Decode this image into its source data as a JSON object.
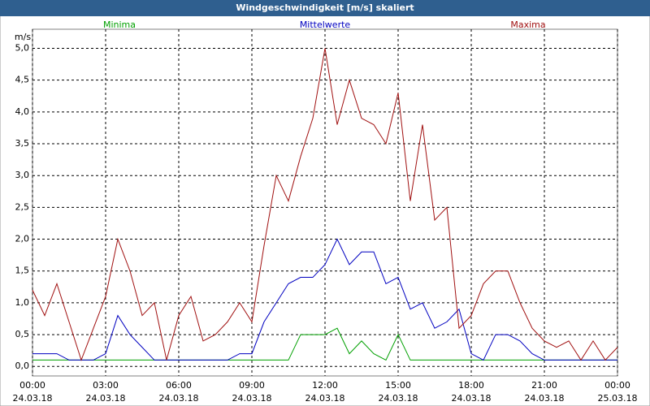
{
  "chart_data": {
    "type": "line",
    "title": "Windgeschwindigkeit [m/s] skaliert",
    "y_label": "m/s",
    "x": [
      0,
      0.5,
      1,
      1.5,
      2,
      2.5,
      3,
      3.5,
      4,
      4.5,
      5,
      5.5,
      6,
      6.5,
      7,
      7.5,
      8,
      8.5,
      9,
      9.5,
      10,
      10.5,
      11,
      11.5,
      12,
      12.5,
      13,
      13.5,
      14,
      14.5,
      15,
      15.5,
      16,
      16.5,
      17,
      17.5,
      18,
      18.5,
      19,
      19.5,
      20,
      20.5,
      21,
      21.5,
      22,
      22.5,
      23,
      23.5,
      24
    ],
    "series": [
      {
        "name": "Minima",
        "color": "#00a000",
        "values": [
          0.1,
          0.1,
          0.1,
          0.1,
          0.1,
          0.1,
          0.1,
          0.1,
          0.1,
          0.1,
          0.1,
          0.1,
          0.1,
          0.1,
          0.1,
          0.1,
          0.1,
          0.1,
          0.1,
          0.1,
          0.1,
          0.1,
          0.5,
          0.5,
          0.5,
          0.6,
          0.2,
          0.4,
          0.2,
          0.1,
          0.5,
          0.1,
          0.1,
          0.1,
          0.1,
          0.1,
          0.1,
          0.1,
          0.1,
          0.1,
          0.1,
          0.1,
          0.1,
          0.1,
          0.1,
          0.1,
          0.1,
          0.1,
          0.1
        ]
      },
      {
        "name": "Mittelwerte",
        "color": "#0000c0",
        "values": [
          0.2,
          0.2,
          0.2,
          0.1,
          0.1,
          0.1,
          0.2,
          0.8,
          0.5,
          0.3,
          0.1,
          0.1,
          0.1,
          0.1,
          0.1,
          0.1,
          0.1,
          0.2,
          0.2,
          0.7,
          1.0,
          1.3,
          1.4,
          1.4,
          1.6,
          2.0,
          1.6,
          1.8,
          1.8,
          1.3,
          1.4,
          0.9,
          1.0,
          0.6,
          0.7,
          0.9,
          0.2,
          0.1,
          0.5,
          0.5,
          0.4,
          0.2,
          0.1,
          0.1,
          0.1,
          0.1,
          0.1,
          0.1,
          0.1
        ]
      },
      {
        "name": "Maxima",
        "color": "#a01010",
        "values": [
          1.2,
          0.8,
          1.3,
          0.7,
          0.1,
          0.6,
          1.1,
          2.0,
          1.5,
          0.8,
          1.0,
          0.1,
          0.8,
          1.1,
          0.4,
          0.5,
          0.7,
          1.0,
          0.7,
          1.9,
          3.0,
          2.6,
          3.3,
          3.9,
          5.0,
          3.8,
          4.5,
          3.9,
          3.8,
          3.5,
          4.3,
          2.6,
          3.8,
          2.3,
          2.5,
          0.6,
          0.8,
          1.3,
          1.5,
          1.5,
          1.0,
          0.6,
          0.4,
          0.3,
          0.4,
          0.1,
          0.4,
          0.1,
          0.3
        ]
      }
    ],
    "xlim": [
      0,
      24
    ],
    "xticks": [
      {
        "value": 0,
        "label": "00:00"
      },
      {
        "value": 3,
        "label": "03:00"
      },
      {
        "value": 6,
        "label": "06:00"
      },
      {
        "value": 9,
        "label": "09:00"
      },
      {
        "value": 12,
        "label": "12:00"
      },
      {
        "value": 15,
        "label": "15:00"
      },
      {
        "value": 18,
        "label": "18:00"
      },
      {
        "value": 21,
        "label": "21:00"
      },
      {
        "value": 24,
        "label": "00:00"
      }
    ],
    "xtick_dates": [
      "24.03.18",
      "24.03.18",
      "24.03.18",
      "24.03.18",
      "24.03.18",
      "24.03.18",
      "24.03.18",
      "24.03.18",
      "25.03.18"
    ],
    "ylim": [
      -0.15,
      5.3
    ],
    "yticks": [
      {
        "value": 0,
        "label": "0,0"
      },
      {
        "value": 0.5,
        "label": "0,5"
      },
      {
        "value": 1,
        "label": "1,0"
      },
      {
        "value": 1.5,
        "label": "1,5"
      },
      {
        "value": 2,
        "label": "2,0"
      },
      {
        "value": 2.5,
        "label": "2,5"
      },
      {
        "value": 3,
        "label": "3,0"
      },
      {
        "value": 3.5,
        "label": "3,5"
      },
      {
        "value": 4,
        "label": "4,0"
      },
      {
        "value": 4.5,
        "label": "4,5"
      },
      {
        "value": 5,
        "label": "5,0"
      }
    ],
    "grid": true
  }
}
